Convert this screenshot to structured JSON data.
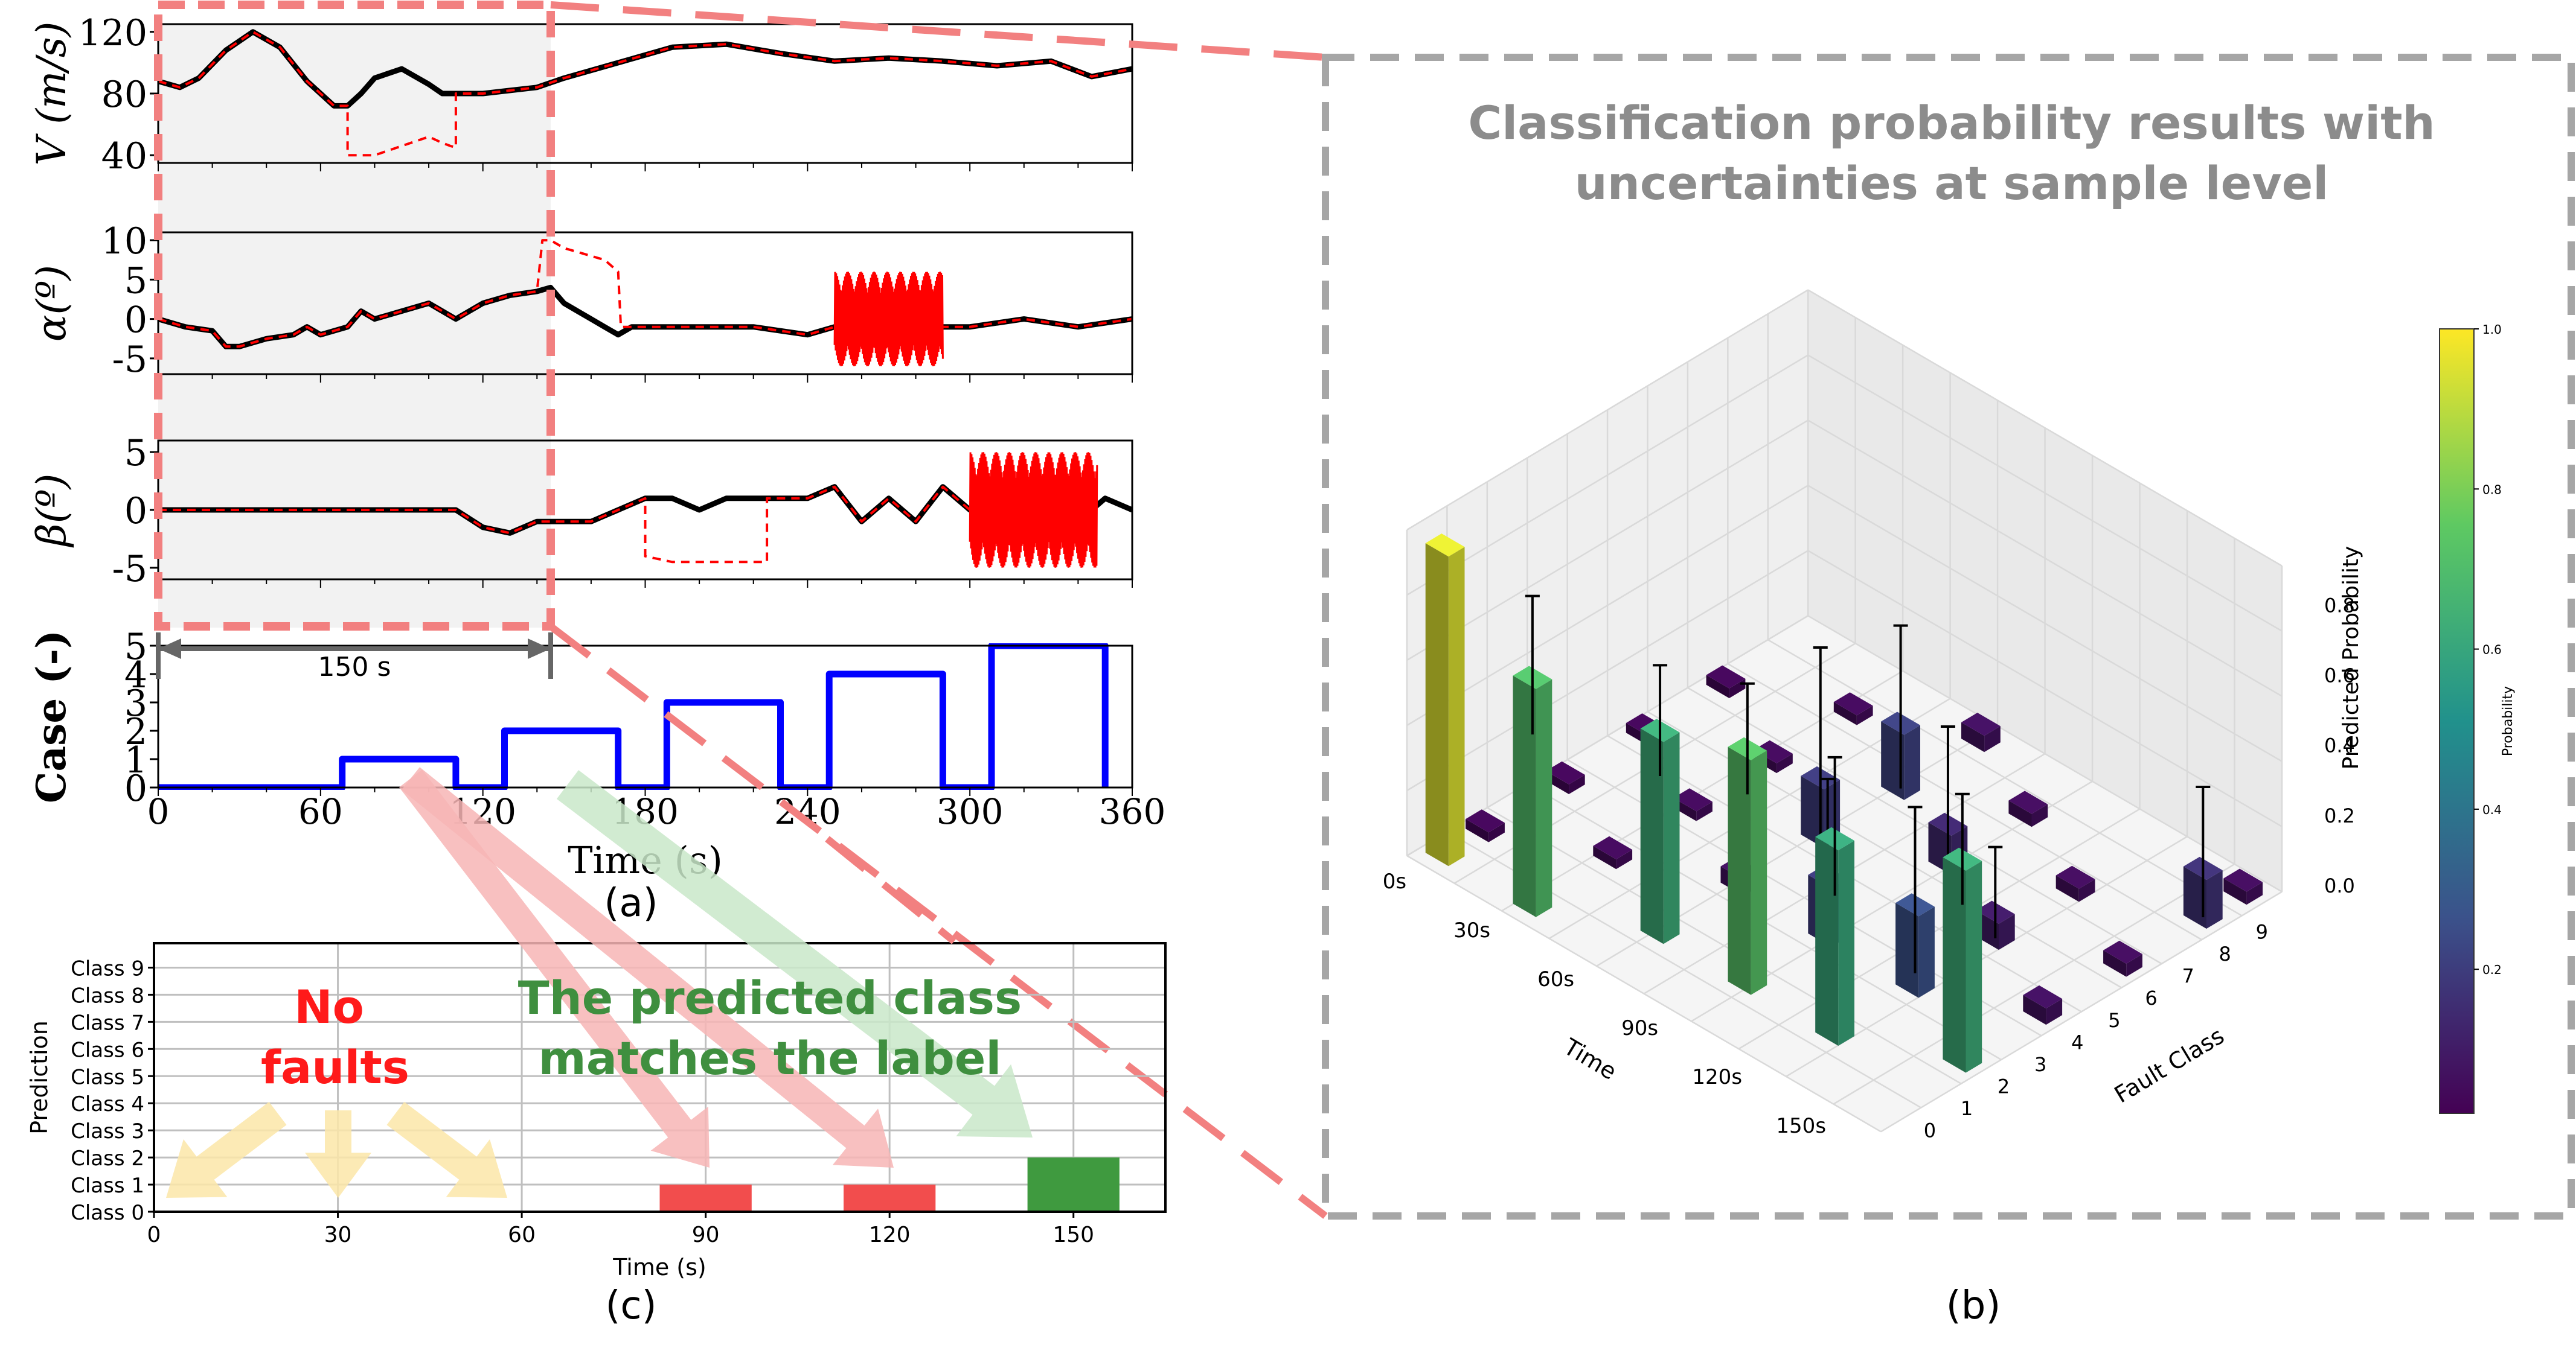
{
  "panel_labels": {
    "a": "(a)",
    "b": "(b)",
    "c": "(c)"
  },
  "window_label": "150 s",
  "panel_b_title": [
    "Classification probability results with",
    "uncertainties at sample level"
  ],
  "annotations": {
    "no_faults": [
      "No",
      "faults"
    ],
    "matches": [
      "The predicted class",
      "matches the label"
    ]
  },
  "colors": {
    "measured": "#000000",
    "faulty": "#ff0000",
    "case": "#0000ff",
    "window_dash": "#f28080",
    "shade": "#f2f2f2",
    "pred_fault": "#f24d4d",
    "pred_match": "#3f9a3f",
    "arrow_red": "#f7b5b5",
    "arrow_green": "#c9e7c9",
    "arrow_yellow": "#fbe6a8"
  },
  "chart_data": [
    {
      "id": "velocity",
      "type": "line",
      "ylabel": "V (m/s)",
      "xlim": [
        0,
        360
      ],
      "ylim": [
        35,
        125
      ],
      "yticks": [
        40,
        80,
        120
      ],
      "series": [
        {
          "role": "measured",
          "x": [
            0,
            8,
            15,
            25,
            35,
            45,
            55,
            65,
            70,
            75,
            80,
            90,
            100,
            105,
            110,
            120,
            130,
            140,
            150,
            170,
            190,
            210,
            230,
            250,
            270,
            290,
            310,
            330,
            345,
            360
          ],
          "y": [
            88,
            84,
            90,
            108,
            120,
            110,
            88,
            72,
            72,
            80,
            90,
            96,
            86,
            80,
            80,
            80,
            82,
            84,
            90,
            100,
            110,
            112,
            106,
            101,
            103,
            101,
            98,
            101,
            91,
            96
          ]
        },
        {
          "role": "faulty",
          "x": [
            0,
            8,
            15,
            25,
            35,
            45,
            55,
            65,
            70,
            70,
            80,
            90,
            100,
            105,
            108,
            110,
            110,
            120,
            130,
            140,
            150,
            170,
            190,
            210,
            230,
            250,
            270,
            290,
            310,
            330,
            345,
            360
          ],
          "y": [
            88,
            84,
            90,
            108,
            120,
            110,
            88,
            72,
            72,
            40,
            40,
            46,
            52,
            48,
            46,
            45,
            80,
            80,
            82,
            84,
            90,
            100,
            110,
            112,
            106,
            101,
            103,
            101,
            98,
            101,
            91,
            96
          ]
        }
      ]
    },
    {
      "id": "alpha",
      "type": "line",
      "ylabel": "α(º)",
      "xlim": [
        0,
        360
      ],
      "ylim": [
        -7,
        11
      ],
      "yticks": [
        -5,
        0,
        5,
        10
      ],
      "series": [
        {
          "role": "measured",
          "x": [
            0,
            10,
            20,
            25,
            30,
            35,
            40,
            50,
            55,
            60,
            70,
            75,
            80,
            90,
            100,
            110,
            120,
            130,
            140,
            145,
            150,
            155,
            160,
            165,
            170,
            175,
            180,
            200,
            220,
            240,
            250,
            260,
            280,
            300,
            320,
            340,
            360
          ],
          "y": [
            0,
            -1,
            -1.5,
            -3.5,
            -3.5,
            -3,
            -2.5,
            -2,
            -1,
            -2,
            -1,
            1,
            0,
            1,
            2,
            0,
            2,
            3,
            3.5,
            4,
            2,
            1,
            0,
            -1,
            -2,
            -1,
            -1,
            -1,
            -1,
            -2,
            -1,
            -1,
            -1,
            -1,
            0,
            -1,
            0
          ]
        },
        {
          "role": "faulty",
          "x": [
            0,
            10,
            20,
            25,
            30,
            35,
            40,
            50,
            55,
            60,
            70,
            75,
            80,
            90,
            100,
            110,
            120,
            130,
            140,
            142,
            145,
            150,
            155,
            160,
            165,
            170,
            171,
            175,
            180,
            200,
            220,
            240,
            250,
            260,
            280,
            300,
            320,
            340,
            360
          ],
          "y": [
            0,
            -1,
            -1.5,
            -3.5,
            -3.5,
            -3,
            -2.5,
            -2,
            -1,
            -2,
            -1,
            1,
            0,
            1,
            2,
            0,
            2,
            3,
            3.5,
            10,
            10,
            9,
            8.5,
            8,
            7.5,
            6,
            -1,
            -1,
            -1,
            -1,
            -1,
            -2,
            -1,
            -1,
            -1,
            -1,
            0,
            -1,
            0
          ]
        },
        {
          "role": "noise",
          "x_start": 250,
          "x_end": 290,
          "amplitude": 6,
          "center": 0
        }
      ]
    },
    {
      "id": "beta",
      "type": "line",
      "ylabel": "β(º)",
      "xlim": [
        0,
        360
      ],
      "ylim": [
        -6,
        6
      ],
      "yticks": [
        -5,
        0,
        5
      ],
      "series": [
        {
          "role": "measured",
          "x": [
            0,
            40,
            80,
            100,
            110,
            120,
            130,
            140,
            150,
            160,
            170,
            180,
            190,
            200,
            210,
            220,
            230,
            240,
            250,
            260,
            270,
            280,
            290,
            300,
            310,
            320,
            330,
            340,
            350,
            360
          ],
          "y": [
            0,
            0,
            0,
            0,
            0,
            -1.5,
            -2,
            -1,
            -1,
            -1,
            0,
            1,
            1,
            0,
            1,
            1,
            1,
            1,
            2,
            -1,
            1,
            -1,
            2,
            0,
            2,
            -1,
            1,
            -1,
            1,
            0
          ]
        },
        {
          "role": "faulty",
          "x": [
            0,
            40,
            80,
            100,
            110,
            120,
            130,
            140,
            150,
            160,
            170,
            180,
            180,
            190,
            200,
            210,
            220,
            225,
            225,
            230,
            240,
            250,
            260,
            270,
            280,
            290,
            300,
            310
          ],
          "y": [
            0,
            0,
            0,
            0,
            0,
            -1.5,
            -2,
            -1,
            -1,
            -1,
            0,
            1,
            -4,
            -4.5,
            -4.5,
            -4.5,
            -4.5,
            -4.5,
            1,
            1,
            1,
            2,
            -1,
            1,
            -1,
            2,
            0,
            2
          ]
        },
        {
          "role": "noise",
          "x_start": 300,
          "x_end": 347,
          "amplitude": 5,
          "center": 0
        }
      ]
    },
    {
      "id": "case",
      "type": "line",
      "ylabel": "Case (-)",
      "xlabel": "Time (s)",
      "xlim": [
        0,
        360
      ],
      "ylim": [
        0,
        5
      ],
      "xticks": [
        0,
        60,
        120,
        180,
        240,
        300,
        360
      ],
      "yticks": [
        0,
        1,
        2,
        3,
        4,
        5
      ],
      "series": [
        {
          "role": "case",
          "x": [
            0,
            68,
            68,
            110,
            110,
            128,
            128,
            170,
            170,
            188,
            188,
            230,
            230,
            248,
            248,
            290,
            290,
            308,
            308,
            350,
            350
          ],
          "y": [
            0,
            0,
            1,
            1,
            0,
            0,
            2,
            2,
            0,
            0,
            3,
            3,
            0,
            0,
            4,
            4,
            0,
            0,
            5,
            5,
            0
          ]
        }
      ]
    },
    {
      "id": "prediction",
      "type": "bar",
      "xlabel": "Time (s)",
      "ylabel": "Prediction",
      "xlim": [
        0,
        165
      ],
      "xticks": [
        0,
        30,
        60,
        90,
        120,
        150
      ],
      "categories": [
        "Class 0",
        "Class 1",
        "Class 2",
        "Class 3",
        "Class 4",
        "Class 5",
        "Class 6",
        "Class 7",
        "Class 8",
        "Class 9"
      ],
      "bars": [
        {
          "x": 90,
          "value": 1,
          "role": "pred_fault"
        },
        {
          "x": 120,
          "value": 1,
          "role": "pred_fault"
        },
        {
          "x": 150,
          "value": 2,
          "role": "pred_match"
        }
      ]
    },
    {
      "id": "probability_3d",
      "type": "bar",
      "xlabel": "Time",
      "ylabel": "Fault Class",
      "zlabel": "Predicted Probability",
      "time_ticks": [
        "0s",
        "30s",
        "60s",
        "90s",
        "120s",
        "150s"
      ],
      "class_ticks": [
        "0",
        "1",
        "2",
        "3",
        "4",
        "5",
        "6",
        "7",
        "8",
        "9"
      ],
      "z_ticks": [
        "0.0",
        "0.2",
        "0.4",
        "0.6",
        "0.8"
      ],
      "colorbar": {
        "label": "Probability",
        "ticks": [
          "0.2",
          "0.4",
          "0.6",
          "0.8",
          "1.0"
        ]
      },
      "points": [
        {
          "t": 0,
          "c": 0,
          "p": 0.95,
          "err": 0
        },
        {
          "t": 0,
          "c": 1,
          "p": 0.02,
          "err": 0
        },
        {
          "t": 0,
          "c": 3,
          "p": 0.02,
          "err": 0
        },
        {
          "t": 0,
          "c": 5,
          "p": 0.02,
          "err": 0
        },
        {
          "t": 0,
          "c": 7,
          "p": 0.02,
          "err": 0
        },
        {
          "t": 1,
          "c": 0,
          "p": 0.7,
          "err": 0.25
        },
        {
          "t": 1,
          "c": 2,
          "p": 0.03,
          "err": 0
        },
        {
          "t": 1,
          "c": 4,
          "p": 0.03,
          "err": 0
        },
        {
          "t": 1,
          "c": 6,
          "p": 0.03,
          "err": 0
        },
        {
          "t": 1,
          "c": 8,
          "p": 0.03,
          "err": 0
        },
        {
          "t": 2,
          "c": 1,
          "p": 0.62,
          "err": 0.2
        },
        {
          "t": 2,
          "c": 3,
          "p": 0.05,
          "err": 0
        },
        {
          "t": 2,
          "c": 5,
          "p": 0.18,
          "err": 0.4
        },
        {
          "t": 2,
          "c": 7,
          "p": 0.2,
          "err": 0.3
        },
        {
          "t": 2,
          "c": 9,
          "p": 0.05,
          "err": 0
        },
        {
          "t": 3,
          "c": 1,
          "p": 0.72,
          "err": 0.2
        },
        {
          "t": 3,
          "c": 3,
          "p": 0.18,
          "err": 0.3
        },
        {
          "t": 3,
          "c": 6,
          "p": 0.12,
          "err": 0.3
        },
        {
          "t": 3,
          "c": 8,
          "p": 0.04,
          "err": 0
        },
        {
          "t": 4,
          "c": 1,
          "p": 0.6,
          "err": 0.25
        },
        {
          "t": 4,
          "c": 3,
          "p": 0.25,
          "err": 0.3
        },
        {
          "t": 4,
          "c": 5,
          "p": 0.08,
          "err": 0.2
        },
        {
          "t": 4,
          "c": 7,
          "p": 0.04,
          "err": 0
        },
        {
          "t": 5,
          "c": 2,
          "p": 0.62,
          "err": 0.2
        },
        {
          "t": 5,
          "c": 4,
          "p": 0.05,
          "err": 0
        },
        {
          "t": 5,
          "c": 6,
          "p": 0.04,
          "err": 0
        },
        {
          "t": 5,
          "c": 8,
          "p": 0.15,
          "err": 0.25
        },
        {
          "t": 5,
          "c": 9,
          "p": 0.04,
          "err": 0
        }
      ]
    }
  ]
}
